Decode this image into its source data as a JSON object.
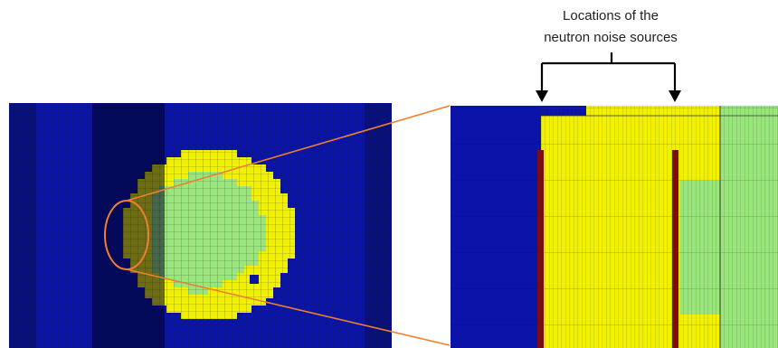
{
  "annotation": {
    "line1": "Locations of the",
    "line2": "neutron noise sources"
  },
  "colors": {
    "reflector": "#0a14a8",
    "fuel_outer": "#f2f200",
    "fuel_inner": "#99e67a",
    "grid_line": "#2a2a2a",
    "highlight_band": "#1a1f55",
    "noise_source": "#7a0e0e",
    "callout": "#f08030",
    "bracket": "#000000"
  },
  "legend_items": [],
  "icons": [
    "bracket-arrow-icon",
    "ellipse-highlight-icon"
  ]
}
